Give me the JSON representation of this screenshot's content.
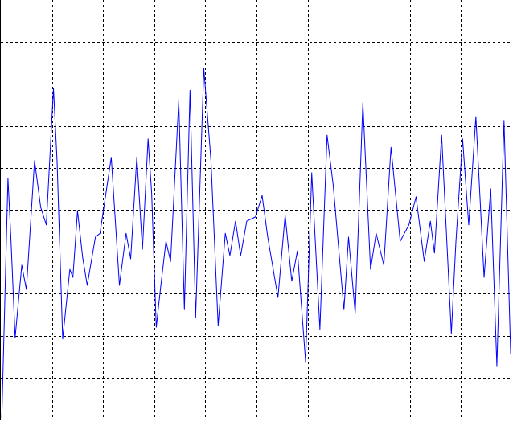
{
  "chart_data": {
    "type": "line",
    "x": [
      0.02,
      0.14,
      0.2,
      0.28,
      0.41,
      0.5,
      0.66,
      0.78,
      0.89,
      1.03,
      1.1,
      1.21,
      1.35,
      1.41,
      1.5,
      1.6,
      1.69,
      1.85,
      1.94,
      2.16,
      2.32,
      2.45,
      2.54,
      2.66,
      2.77,
      2.88,
      2.95,
      3.04,
      3.13,
      3.23,
      3.32,
      3.48,
      3.59,
      3.7,
      3.81,
      3.97,
      4.11,
      4.25,
      4.39,
      4.48,
      4.59,
      4.69,
      4.81,
      4.98,
      5.11,
      5.22,
      5.42,
      5.56,
      5.69,
      5.8,
      5.96,
      6.08,
      6.24,
      6.38,
      6.5,
      6.71,
      6.8,
      6.93,
      7.08,
      7.23,
      7.34,
      7.49,
      7.63,
      7.81,
      7.98,
      8.12,
      8.28,
      8.4,
      8.48,
      8.62,
      8.81,
      8.9,
      9.03,
      9.15,
      9.29,
      9.45,
      9.58,
      9.7,
      9.84,
      9.97
    ],
    "values": [
      0.04,
      5.75,
      4.25,
      1.95,
      3.68,
      3.1,
      6.17,
      5.06,
      4.64,
      7.89,
      6.17,
      1.92,
      3.58,
      3.39,
      4.98,
      3.87,
      3.2,
      4.35,
      4.44,
      6.25,
      3.2,
      4.44,
      3.83,
      6.26,
      4.06,
      6.69,
      5.4,
      2.2,
      3.2,
      4.25,
      3.77,
      7.61,
      2.62,
      7.85,
      2.43,
      8.37,
      6.17,
      2.24,
      4.44,
      3.91,
      4.73,
      3.91,
      4.73,
      4.83,
      5.34,
      4.35,
      2.91,
      4.87,
      3.3,
      4.02,
      1.38,
      5.88,
      2.15,
      6.78,
      5.59,
      2.62,
      4.35,
      2.53,
      7.55,
      3.58,
      4.44,
      3.68,
      6.49,
      4.25,
      4.64,
      5.31,
      3.77,
      4.73,
      3.97,
      6.78,
      2.05,
      4.25,
      6.69,
      4.64,
      7.22,
      3.39,
      5.5,
      1.28,
      7.13,
      1.57
    ],
    "color": "#0000ff",
    "xlim": [
      0,
      10
    ],
    "ylim": [
      0,
      10
    ],
    "xticks": [
      1,
      2,
      3,
      4,
      5,
      6,
      7,
      8,
      9
    ],
    "yticks": [
      1,
      2,
      3,
      4,
      5,
      6,
      7,
      8,
      9
    ],
    "grid": true
  }
}
